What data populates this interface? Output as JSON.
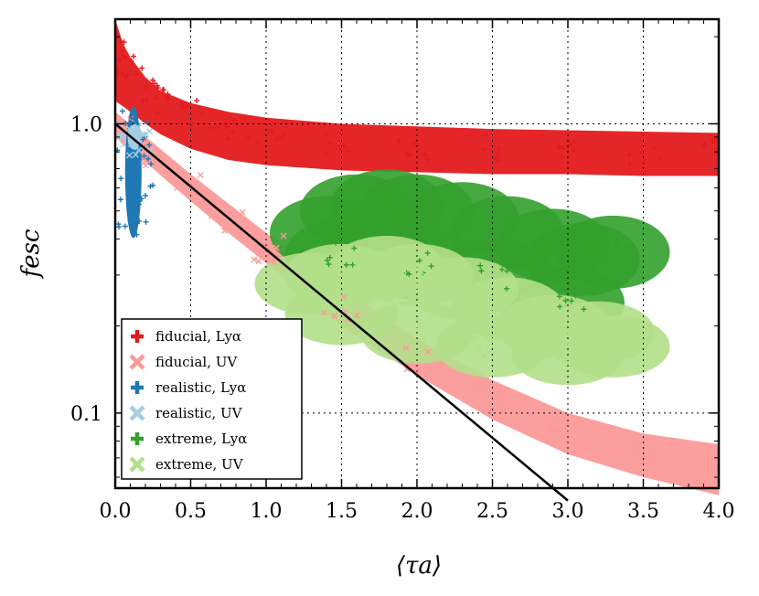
{
  "chart_data": {
    "type": "scatter",
    "title": "",
    "xlabel": "⟨τa⟩",
    "ylabel": "fesc",
    "xlim": [
      0.0,
      4.0
    ],
    "ylim": [
      0.055,
      2.3
    ],
    "yscale": "log",
    "grid": true,
    "legend_position": "lower-left",
    "x_ticks": [
      "0.0",
      "0.5",
      "1.0",
      "1.5",
      "2.0",
      "2.5",
      "3.0",
      "3.5",
      "4.0"
    ],
    "x_tick_values": [
      0.0,
      0.5,
      1.0,
      1.5,
      2.0,
      2.5,
      3.0,
      3.5,
      4.0
    ],
    "y_ticks": [
      "0.1",
      "1.0"
    ],
    "y_tick_values": [
      0.1,
      1.0
    ],
    "reference_line": {
      "name": "exp(-tau)",
      "points": [
        [
          0.0,
          1.0
        ],
        [
          3.0,
          0.0498
        ]
      ]
    },
    "series": [
      {
        "name": "fiducial, Lyα",
        "marker": "+",
        "color": "#e31a1c",
        "points": [
          [
            0.0,
            1.85
          ],
          [
            0.05,
            1.6
          ],
          [
            0.1,
            1.45
          ],
          [
            0.2,
            1.3
          ],
          [
            0.3,
            1.2
          ],
          [
            0.5,
            1.08
          ],
          [
            0.75,
            0.98
          ],
          [
            1.0,
            0.92
          ],
          [
            1.5,
            0.87
          ],
          [
            2.0,
            0.84
          ],
          [
            2.5,
            0.82
          ],
          [
            3.0,
            0.8
          ],
          [
            3.5,
            0.79
          ],
          [
            4.0,
            0.78
          ]
        ],
        "band_upper": [
          2.3,
          1.9,
          1.7,
          1.45,
          1.3,
          1.18,
          1.1,
          1.05,
          1.0,
          0.98,
          0.96,
          0.95,
          0.94,
          0.93
        ],
        "band_lower": [
          1.2,
          1.15,
          1.1,
          1.0,
          0.92,
          0.82,
          0.75,
          0.72,
          0.69,
          0.68,
          0.67,
          0.67,
          0.66,
          0.66
        ]
      },
      {
        "name": "fiducial, UV",
        "marker": "x",
        "color": "#fb9a99",
        "points": [
          [
            0.0,
            1.0
          ],
          [
            0.25,
            0.77
          ],
          [
            0.5,
            0.6
          ],
          [
            0.75,
            0.47
          ],
          [
            1.0,
            0.37
          ],
          [
            1.5,
            0.23
          ],
          [
            2.0,
            0.155
          ],
          [
            2.5,
            0.11
          ],
          [
            3.0,
            0.085
          ],
          [
            3.5,
            0.07
          ],
          [
            4.0,
            0.062
          ]
        ],
        "band_upper": [
          1.1,
          0.86,
          0.67,
          0.53,
          0.42,
          0.27,
          0.18,
          0.13,
          0.1,
          0.085,
          0.078
        ],
        "band_lower": [
          0.9,
          0.7,
          0.54,
          0.42,
          0.33,
          0.2,
          0.135,
          0.095,
          0.072,
          0.06,
          0.052
        ]
      },
      {
        "name": "realistic, Lyα",
        "marker": "+",
        "color": "#1f78b4",
        "points": [
          [
            0.1,
            1.05
          ],
          [
            0.11,
            0.9
          ],
          [
            0.12,
            0.75
          ],
          [
            0.13,
            0.6
          ],
          [
            0.12,
            0.5
          ],
          [
            0.12,
            0.42
          ]
        ]
      },
      {
        "name": "realistic, UV",
        "marker": "x",
        "color": "#a6cee3",
        "points": [
          [
            0.11,
            0.95
          ],
          [
            0.12,
            0.9
          ],
          [
            0.13,
            0.86
          ],
          [
            0.14,
            0.88
          ]
        ]
      },
      {
        "name": "extreme, Lyα",
        "marker": "+",
        "color": "#33a02c",
        "points": [
          [
            1.4,
            0.42
          ],
          [
            1.6,
            0.5
          ],
          [
            1.8,
            0.52
          ],
          [
            2.0,
            0.5
          ],
          [
            2.3,
            0.47
          ],
          [
            2.6,
            0.42
          ],
          [
            2.9,
            0.38
          ],
          [
            3.1,
            0.34
          ],
          [
            3.3,
            0.36
          ],
          [
            1.5,
            0.35
          ],
          [
            2.0,
            0.33
          ],
          [
            2.5,
            0.3
          ],
          [
            3.0,
            0.24
          ]
        ]
      },
      {
        "name": "extreme, UV",
        "marker": "x",
        "color": "#b2df8a",
        "points": [
          [
            1.3,
            0.28
          ],
          [
            1.5,
            0.3
          ],
          [
            1.8,
            0.32
          ],
          [
            2.0,
            0.3
          ],
          [
            2.3,
            0.27
          ],
          [
            2.6,
            0.23
          ],
          [
            2.9,
            0.2
          ],
          [
            3.2,
            0.19
          ],
          [
            3.3,
            0.17
          ],
          [
            1.5,
            0.22
          ],
          [
            2.0,
            0.19
          ],
          [
            2.5,
            0.17
          ],
          [
            3.0,
            0.16
          ]
        ]
      }
    ]
  }
}
